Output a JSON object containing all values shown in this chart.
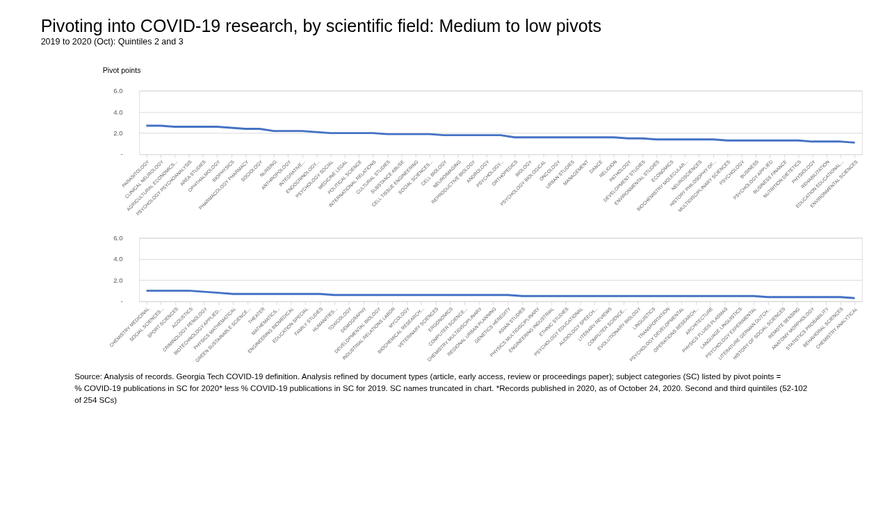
{
  "chart_data": [
    {
      "type": "line",
      "title": "Pivoting into COVID-19 research, by scientific field: Medium to low pivots",
      "subtitle": "2019 to 2020 (Oct): Quintiles 2 and 3",
      "ylabel": "Pivot points",
      "categories": [
        "PARASITOLOGY",
        "CLINICAL NEUROLOGY",
        "AGRICULTURAL ECONOMICS...",
        "PSYCHOLOGY PSYCHOANALYSIS",
        "AREA STUDIES",
        "OPHTHALMOLOGY",
        "BIOPHYSICS",
        "PHARMACOLOGY PHARMACY",
        "SOCIOLOGY",
        "NURSING",
        "ANTHROPOLOGY",
        "INTEGRATIVE...",
        "ENDOCRINOLOGY...",
        "PSYCHOLOGY SOCIAL",
        "MEDICINE LEGAL",
        "POLITICAL SCIENCE",
        "INTERNATIONAL RELATIONS",
        "CULTURAL STUDIES",
        "SUBSTANCE ABUSE",
        "CELL TISSUE ENGINEERING",
        "SOCIAL SCIENCES...",
        "CELL BIOLOGY",
        "NEUROIMAGING",
        "REPRODUCTIVE BIOLOGY",
        "ANDROLOGY",
        "PSYCHOLOGY...",
        "ORTHOPEDICS",
        "BIOLOGY",
        "PSYCHOLOGY BIOLOGICAL",
        "ONCOLOGY",
        "URBAN STUDIES",
        "MANAGEMENT",
        "DANCE",
        "RELIGION",
        "PATHOLOGY",
        "DEVELOPMENT STUDIES",
        "ENVIRONMENTAL STUDIES",
        "ECONOMICS",
        "BIOCHEMISTRY MOLECULAR...",
        "NEUROSCIENCES",
        "HISTORY PHILOSOPHY OF...",
        "MULTIDISCIPLINARY SCIENCES",
        "PSYCHOLOGY",
        "BUSINESS",
        "PSYCHOLOGY APPLIED",
        "BUSINESS FINANCE",
        "NUTRITION DIETETICS",
        "PHYSIOLOGY",
        "REHABILITATION",
        "EDUCATION EDUCATIONAL...",
        "ENVIRONMENTAL SCIENCES"
      ],
      "series": [
        {
          "color": "#4472c4",
          "values": [
            2.7,
            2.7,
            2.6,
            2.6,
            2.6,
            2.6,
            2.5,
            2.4,
            2.4,
            2.2,
            2.2,
            2.2,
            2.1,
            2.0,
            2.0,
            2.0,
            2.0,
            1.9,
            1.9,
            1.9,
            1.9,
            1.8,
            1.8,
            1.8,
            1.8,
            1.8,
            1.6,
            1.6,
            1.6,
            1.6,
            1.6,
            1.6,
            1.6,
            1.6,
            1.5,
            1.5,
            1.4,
            1.4,
            1.4,
            1.4,
            1.4,
            1.3,
            1.3,
            1.3,
            1.3,
            1.3,
            1.3,
            1.2,
            1.2,
            1.2,
            1.1
          ]
        }
      ],
      "ylim": [
        0,
        6
      ],
      "yticks": [
        {
          "value": 0,
          "label": "-"
        },
        {
          "value": 2,
          "label": "2.0"
        },
        {
          "value": 4,
          "label": "4.0"
        },
        {
          "value": 6,
          "label": "6.0"
        }
      ],
      "grid": "y",
      "line_style": "solid",
      "marker": "none"
    },
    {
      "type": "line",
      "categories": [
        "CHEMISTRY MEDICINAL",
        "SOCIAL SCIENCES...",
        "SPORT SCIENCES",
        "ACOUSTICS",
        "CRIMINOLOGY PENOLOGY",
        "BIOTECHNOLOGY APPLIED...",
        "PHYSICS MATHEMATICAL",
        "GREEN SUSTAINABLE SCIENCE...",
        "THEATER",
        "MATHEMATICS...",
        "ENGINEERING BIOMEDICAL",
        "EDUCATION SPECIAL",
        "FAMILY STUDIES",
        "HUMANITIES...",
        "TOXICOLOGY",
        "DEMOGRAPHY",
        "DEVELOPMENTAL BIOLOGY",
        "INDUSTRIAL RELATIONS LABOR",
        "MYCOLOGY",
        "BIOCHEMICAL RESEARCH...",
        "VETERINARY SCIENCES",
        "ERGONOMICS",
        "COMPUTER SCIENCE...",
        "CHEMISTRY MULTIDISCIPLINARY",
        "REGIONAL URBAN PLANNING",
        "GENETICS HEREDITY",
        "ASIAN STUDIES",
        "PHYSICS MULTIDISCIPLINARY",
        "ENGINEERING INDUSTRIAL",
        "ETHNIC STUDIES",
        "PSYCHOLOGY EDUCATIONAL",
        "AUDIOLOGY SPEECH...",
        "LITERARY REVIEWS",
        "COMPUTER SCIENCE...",
        "EVOLUTIONARY BIOLOGY",
        "LINGUISTICS",
        "TRANSPORTATION",
        "PSYCHOLOGY DEVELOPMENTAL",
        "OPERATIONS RESEARCH...",
        "ARCHITECTURE",
        "PHYSICS FLUIDS PLASMAS",
        "LANGUAGE LINGUISTICS",
        "PSYCHOLOGY EXPERIMENTAL",
        "LITERATURE GERMAN DUTCH...",
        "HISTORY OF SOCIAL SCIENCES",
        "REMOTE SENSING",
        "ANATOMY MORPHOLOGY",
        "STATISTICS PROBABILITY",
        "BEHAVIORAL SCIENCES",
        "CHEMISTRY ANALYTICAL"
      ],
      "series": [
        {
          "color": "#4472c4",
          "values": [
            1.0,
            1.0,
            1.0,
            1.0,
            0.9,
            0.8,
            0.7,
            0.7,
            0.7,
            0.7,
            0.7,
            0.7,
            0.7,
            0.6,
            0.6,
            0.6,
            0.6,
            0.6,
            0.6,
            0.6,
            0.6,
            0.6,
            0.6,
            0.6,
            0.6,
            0.6,
            0.5,
            0.5,
            0.5,
            0.5,
            0.5,
            0.5,
            0.5,
            0.5,
            0.5,
            0.5,
            0.5,
            0.5,
            0.5,
            0.5,
            0.5,
            0.5,
            0.5,
            0.4,
            0.4,
            0.4,
            0.4,
            0.4,
            0.4,
            0.3
          ]
        }
      ],
      "ylim": [
        0,
        6
      ],
      "yticks": [
        {
          "value": 0,
          "label": "-"
        },
        {
          "value": 2,
          "label": "2.0"
        },
        {
          "value": 4,
          "label": "4.0"
        },
        {
          "value": 6,
          "label": "6.0"
        }
      ],
      "grid": "y",
      "line_style": "solid",
      "marker": "none",
      "annotations": [
        "Source: Analysis of records. Georgia Tech COVID-19 definition. Analysis refined by document types (article, early access, review or proceedings paper); subject categories (SC) listed by pivot points = % COVID-19 publications in SC for 2020* less % COVID-19 publications in SC for 2019. SC names truncated in chart. *Records published in 2020, as of October 24, 2020. Second and third quintiles (52-102 of 254 SCs)"
      ]
    }
  ]
}
